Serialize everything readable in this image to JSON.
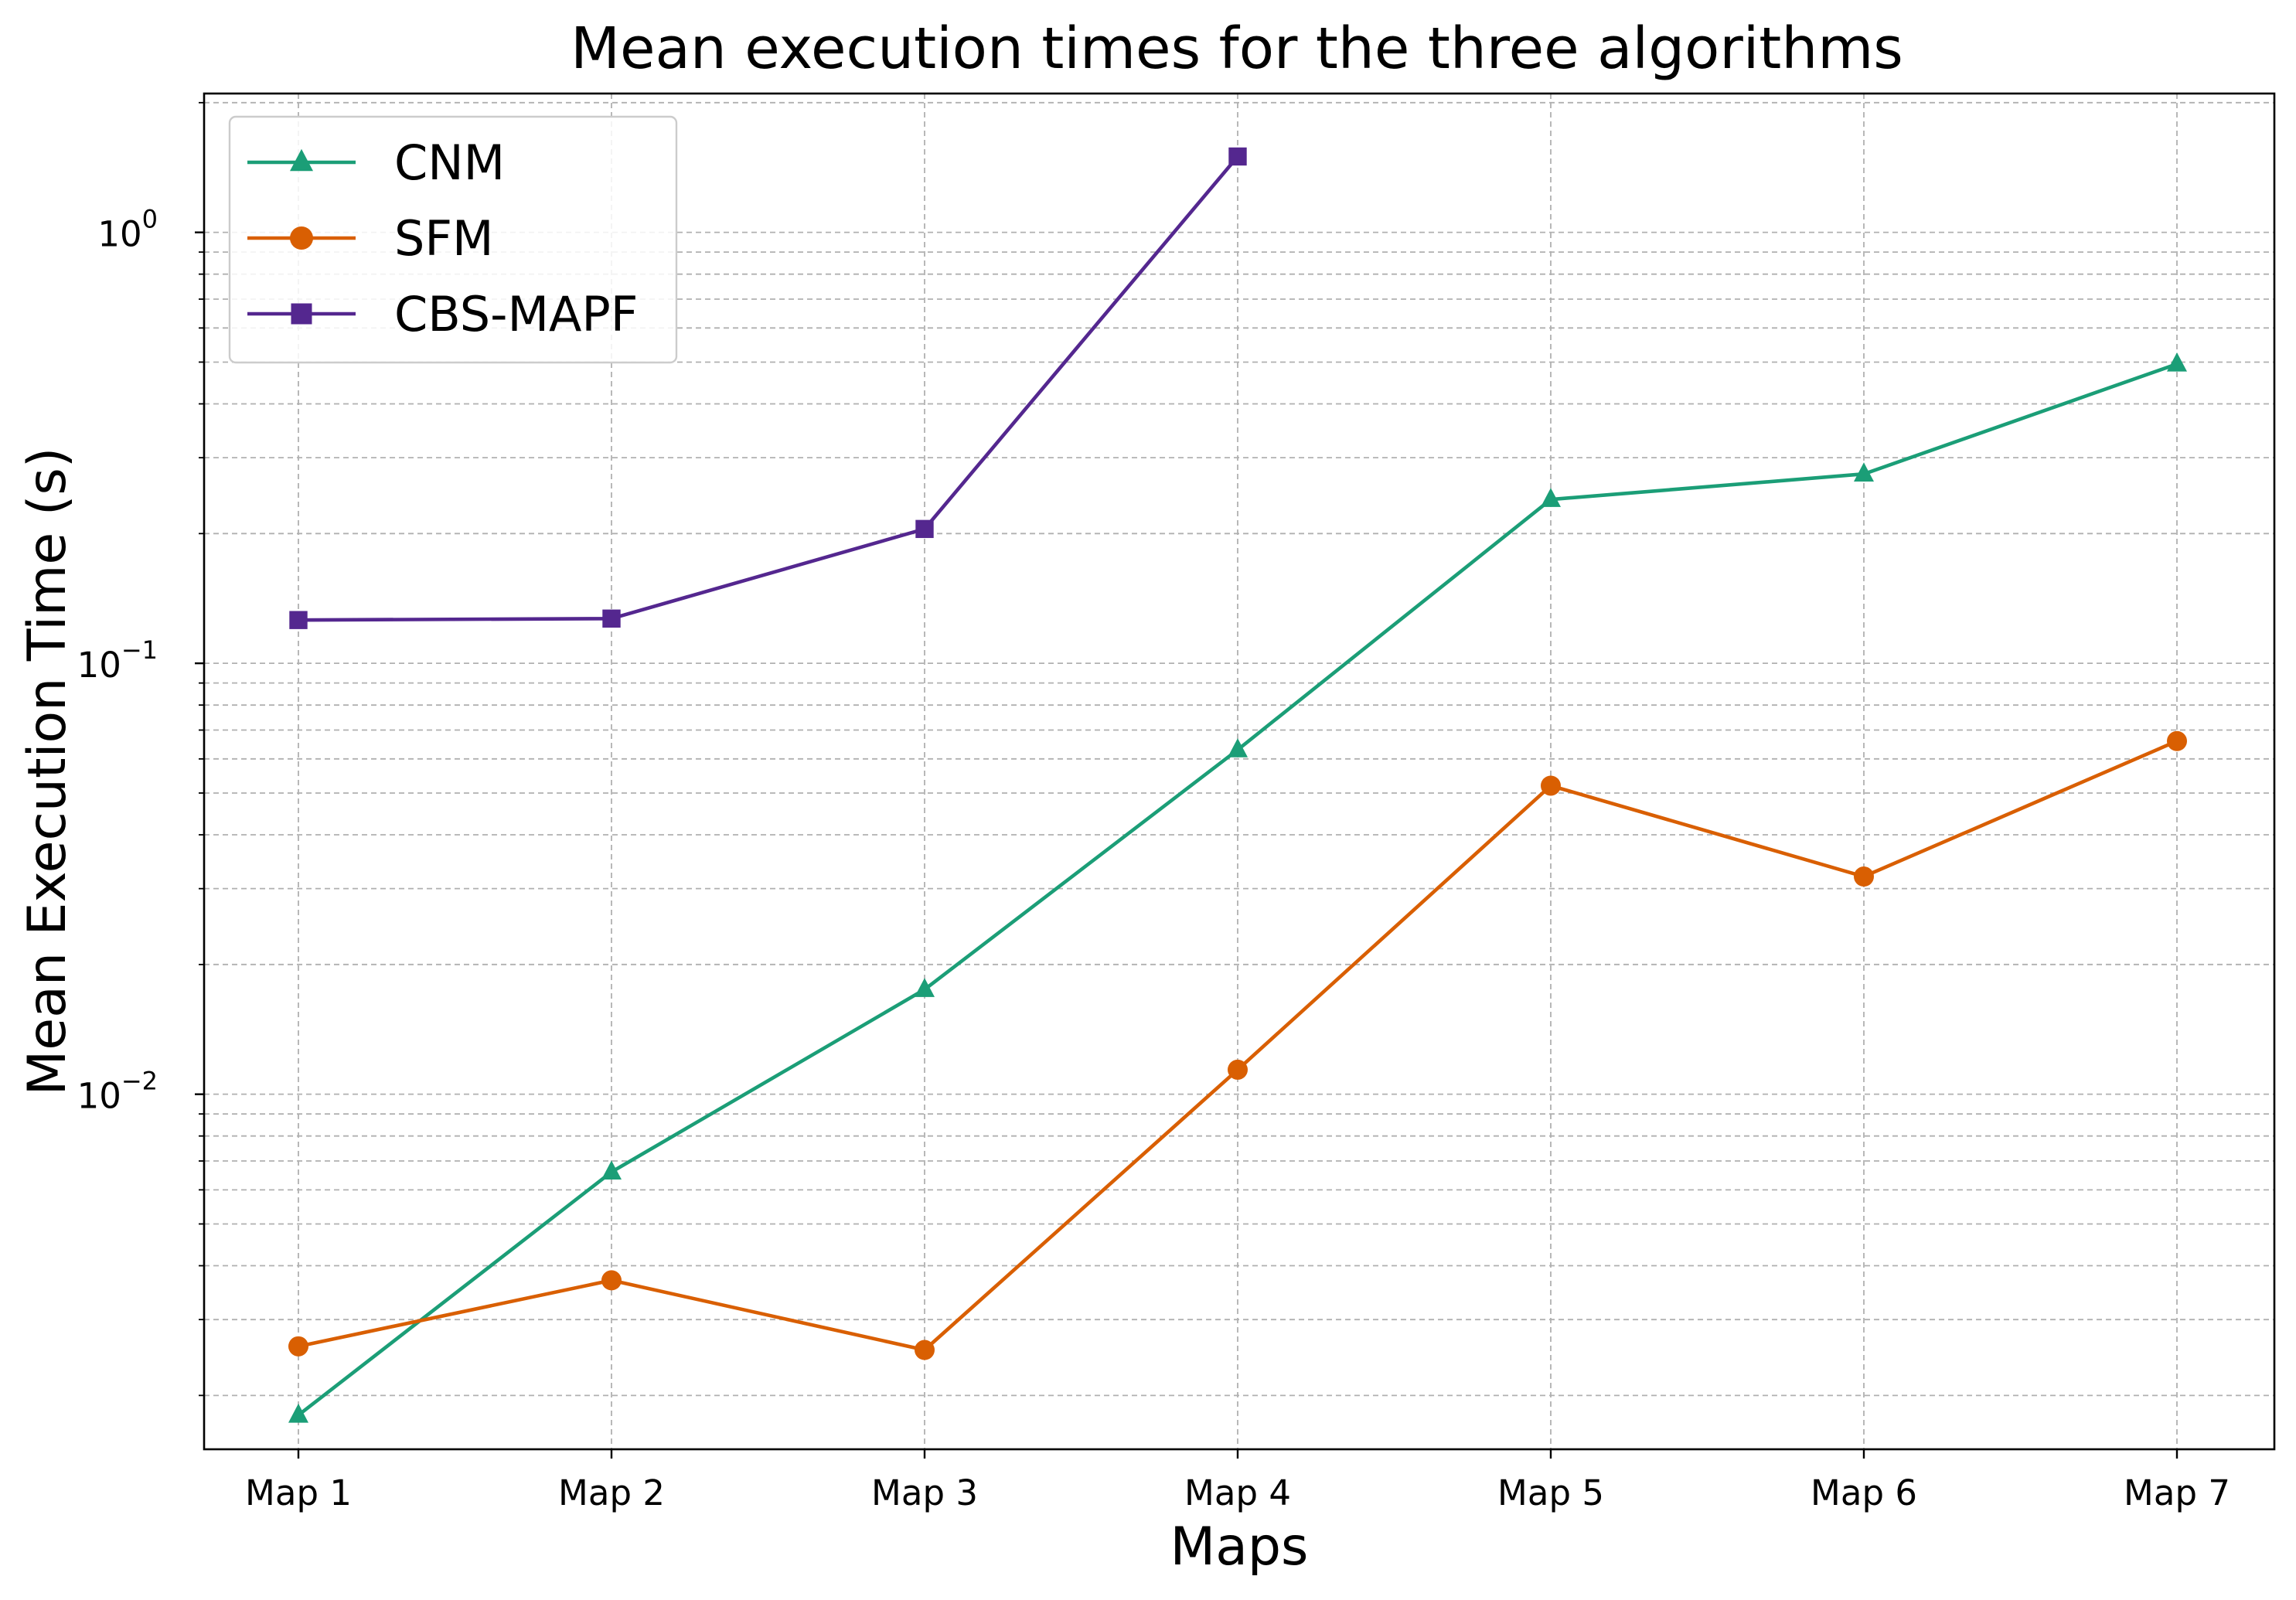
{
  "chart_data": {
    "type": "line",
    "title": "Mean execution times for the three algorithms",
    "xlabel": "Maps",
    "ylabel": "Mean Execution Time (s)",
    "categories": [
      "Map 1",
      "Map 2",
      "Map 3",
      "Map 4",
      "Map 5",
      "Map 6",
      "Map 7"
    ],
    "yscale": "log",
    "ylim": [
      0.0015,
      2.1
    ],
    "yticks": [
      {
        "value": 0.01,
        "base": "10",
        "exp": "−2"
      },
      {
        "value": 0.1,
        "base": "10",
        "exp": "−1"
      },
      {
        "value": 1,
        "base": "10",
        "exp": "0"
      }
    ],
    "grid": true,
    "legend_position": "top-left",
    "series": [
      {
        "name": "CNM",
        "marker": "triangle",
        "color": "#1b9e77",
        "values": [
          0.0018,
          0.0066,
          0.0175,
          0.063,
          0.24,
          0.275,
          0.495
        ]
      },
      {
        "name": "SFM",
        "marker": "circle",
        "color": "#d95f02",
        "values": [
          0.0026,
          0.0037,
          0.00255,
          0.0114,
          0.052,
          0.032,
          0.066
        ]
      },
      {
        "name": "CBS-MAPF",
        "marker": "square",
        "color": "#54278f",
        "values": [
          0.126,
          0.127,
          0.205,
          1.5,
          null,
          null,
          null
        ]
      }
    ]
  }
}
